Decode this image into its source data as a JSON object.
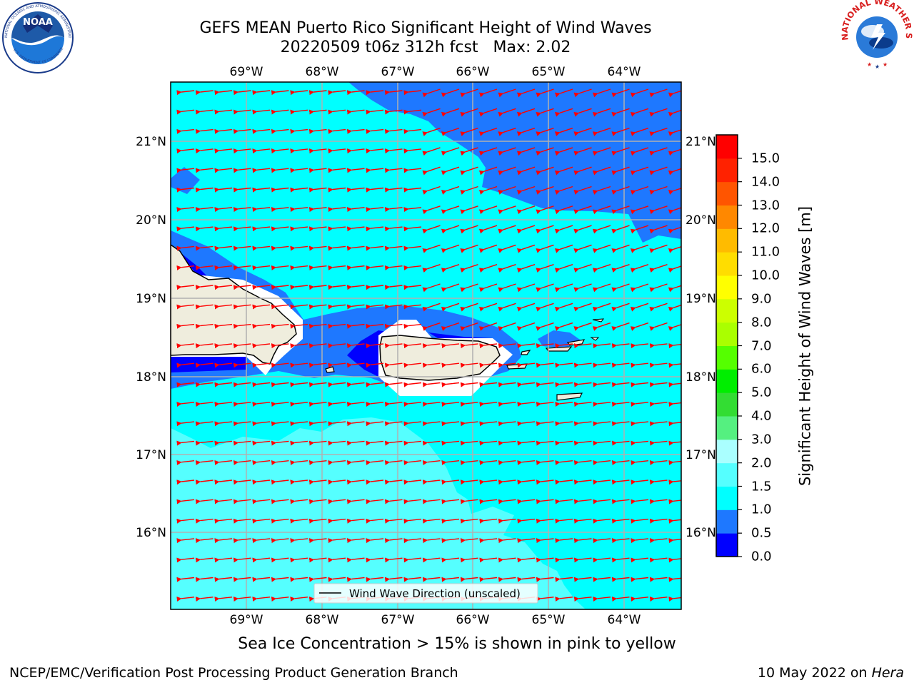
{
  "title": {
    "line1": "GEFS MEAN Puerto Rico Significant Height of Wind Waves",
    "line2": "20220509 t06z 312h fcst   Max: 2.02"
  },
  "logos": {
    "left": {
      "name": "noaa-logo",
      "text": "NOAA",
      "ring_text": "NATIONAL OCEANIC AND ATMOSPHERIC ADMINISTRATION · U.S. DEPARTMENT OF COMMERCE"
    },
    "right": {
      "name": "nws-logo",
      "ring_text": "NATIONAL WEATHER SERVICE"
    }
  },
  "map": {
    "lon_labels": [
      "69°W",
      "68°W",
      "67°W",
      "66°W",
      "65°W",
      "64°W"
    ],
    "lat_labels": [
      "21°N",
      "20°N",
      "19°N",
      "18°N",
      "17°N",
      "16°N"
    ],
    "legend_label": "Wind Wave Direction (unscaled)",
    "vector_color": "#ff0000",
    "land_color": "#efeddd",
    "grid": true
  },
  "colorbar": {
    "label": "Significant Height of Wind Waves [m]",
    "ticks": [
      "0.0",
      "0.5",
      "1.0",
      "1.5",
      "2.0",
      "3.0",
      "4.0",
      "5.0",
      "6.0",
      "7.0",
      "8.0",
      "9.0",
      "10.0",
      "11.0",
      "12.0",
      "13.0",
      "14.0",
      "15.0"
    ],
    "colors": [
      "#0000ff",
      "#1e78ff",
      "#00ffff",
      "#55ffff",
      "#aaffff",
      "#55f080",
      "#33dd33",
      "#00ee00",
      "#55ff00",
      "#aaff00",
      "#ccff00",
      "#ffff00",
      "#ffdd00",
      "#ffbb00",
      "#ff8800",
      "#ff5500",
      "#ff2200",
      "#ff0000"
    ]
  },
  "footer": {
    "subtitle": "Sea Ice Concentration > 15% is shown in pink to yellow",
    "credit": "NCEP/EMC/Verification Post Processing Product Generation Branch",
    "date": "10 May 2022 on ",
    "host": "Hera"
  }
}
